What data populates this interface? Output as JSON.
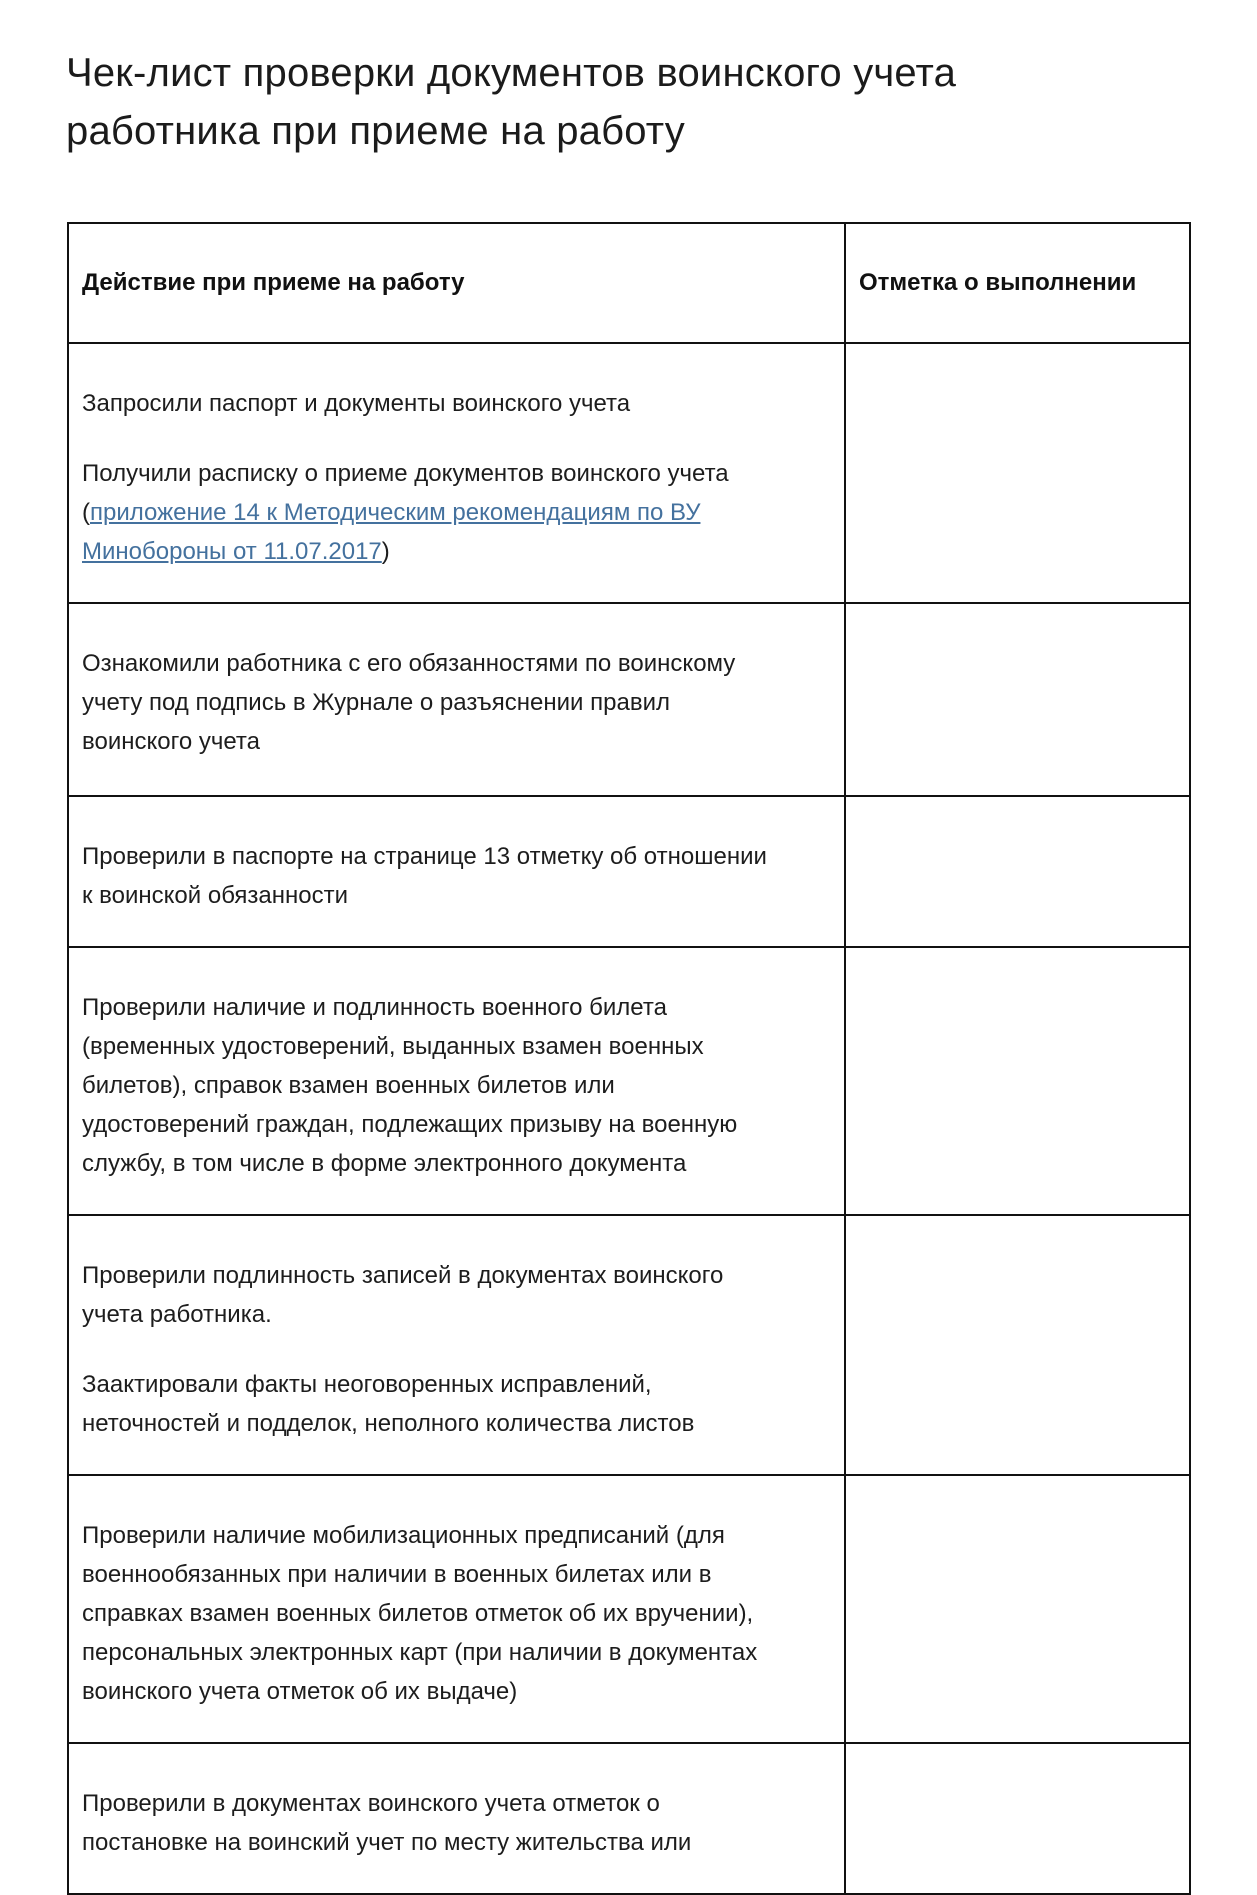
{
  "colors": {
    "link": "#44719E",
    "text": "#1D1D1D",
    "border": "#111111"
  },
  "title": "Чек-лист проверки документов воинского учета работника при приеме на работу",
  "table": {
    "headers": {
      "action": "Действие при приеме на работу",
      "completion": "Отметка о выполнении"
    },
    "rows": [
      {
        "paragraph": "Запросили паспорт и документы воинского учета",
        "link_paragraph": {
          "prefix": "Получили расписку о приеме документов воинского учета (",
          "link_text": "приложение 14 к Методическим рекомендациям по ВУ Минобороны от 11.07.2017",
          "suffix": ")"
        },
        "completion": ""
      },
      {
        "paragraph": "Ознакомили работника с его обязанностями по воинскому учету под подпись в Журнале о разъяснении правил воинского учета",
        "completion": ""
      },
      {
        "paragraph": "Проверили в паспорте на странице 13 отметку об отношении к воинской обязанности",
        "completion": ""
      },
      {
        "paragraph": "Проверили наличие и подлинность военного билета (временных удостоверений, выданных взамен военных билетов), справок взамен военных билетов или удостоверений граждан, подлежащих призыву на военную службу, в том числе в форме электронного документа",
        "completion": ""
      },
      {
        "paragraphs": [
          "Проверили подлинность записей в документах воинского учета работника.",
          "Заактировали факты неоговоренных исправлений, неточностей и подделок, неполного количества листов"
        ],
        "completion": ""
      },
      {
        "paragraph": "Проверили наличие мобилизационных предписаний (для военнообязанных при наличии в военных билетах или в справках взамен военных билетов отметок об их вручении), персональных электронных карт (при наличии в документах воинского учета отметок об их выдаче)",
        "completion": ""
      },
      {
        "paragraph": "Проверили в документах воинского учета отметок о постановке на воинский учет по месту жительства или",
        "completion": ""
      }
    ]
  }
}
